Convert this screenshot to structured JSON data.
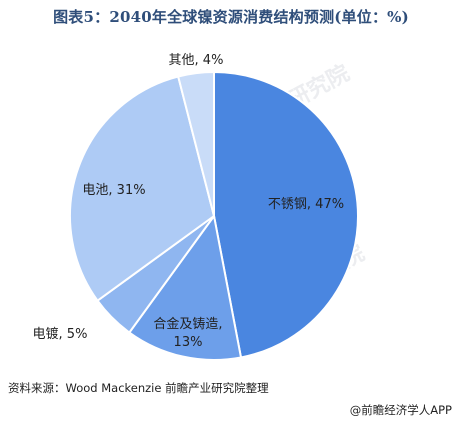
{
  "title": "图表5：2040年全球镍资源消费结构预测(单位：%)",
  "source": "资料来源：Wood Mackenzie 前瞻产业研究院整理",
  "footer": "@前瞻经济学人APP",
  "watermark": "前瞻产业研究院",
  "chart_data": {
    "type": "pie",
    "title": "图表5：2040年全球镍资源消费结构预测(单位：%)",
    "unit": "%",
    "slices": [
      {
        "name": "不锈钢",
        "value": 47,
        "label": "不锈钢, 47%",
        "color": "#4a86e0"
      },
      {
        "name": "合金及铸造",
        "value": 13,
        "label": "合金及铸造,\n13%",
        "color": "#6d9fea"
      },
      {
        "name": "电镀",
        "value": 5,
        "label": "电镀, 5%",
        "color": "#8fb6f0"
      },
      {
        "name": "电池",
        "value": 31,
        "label": "电池, 31%",
        "color": "#aecbf5"
      },
      {
        "name": "其他",
        "value": 4,
        "label": "其他, 4%",
        "color": "#c9dcf8"
      }
    ]
  }
}
